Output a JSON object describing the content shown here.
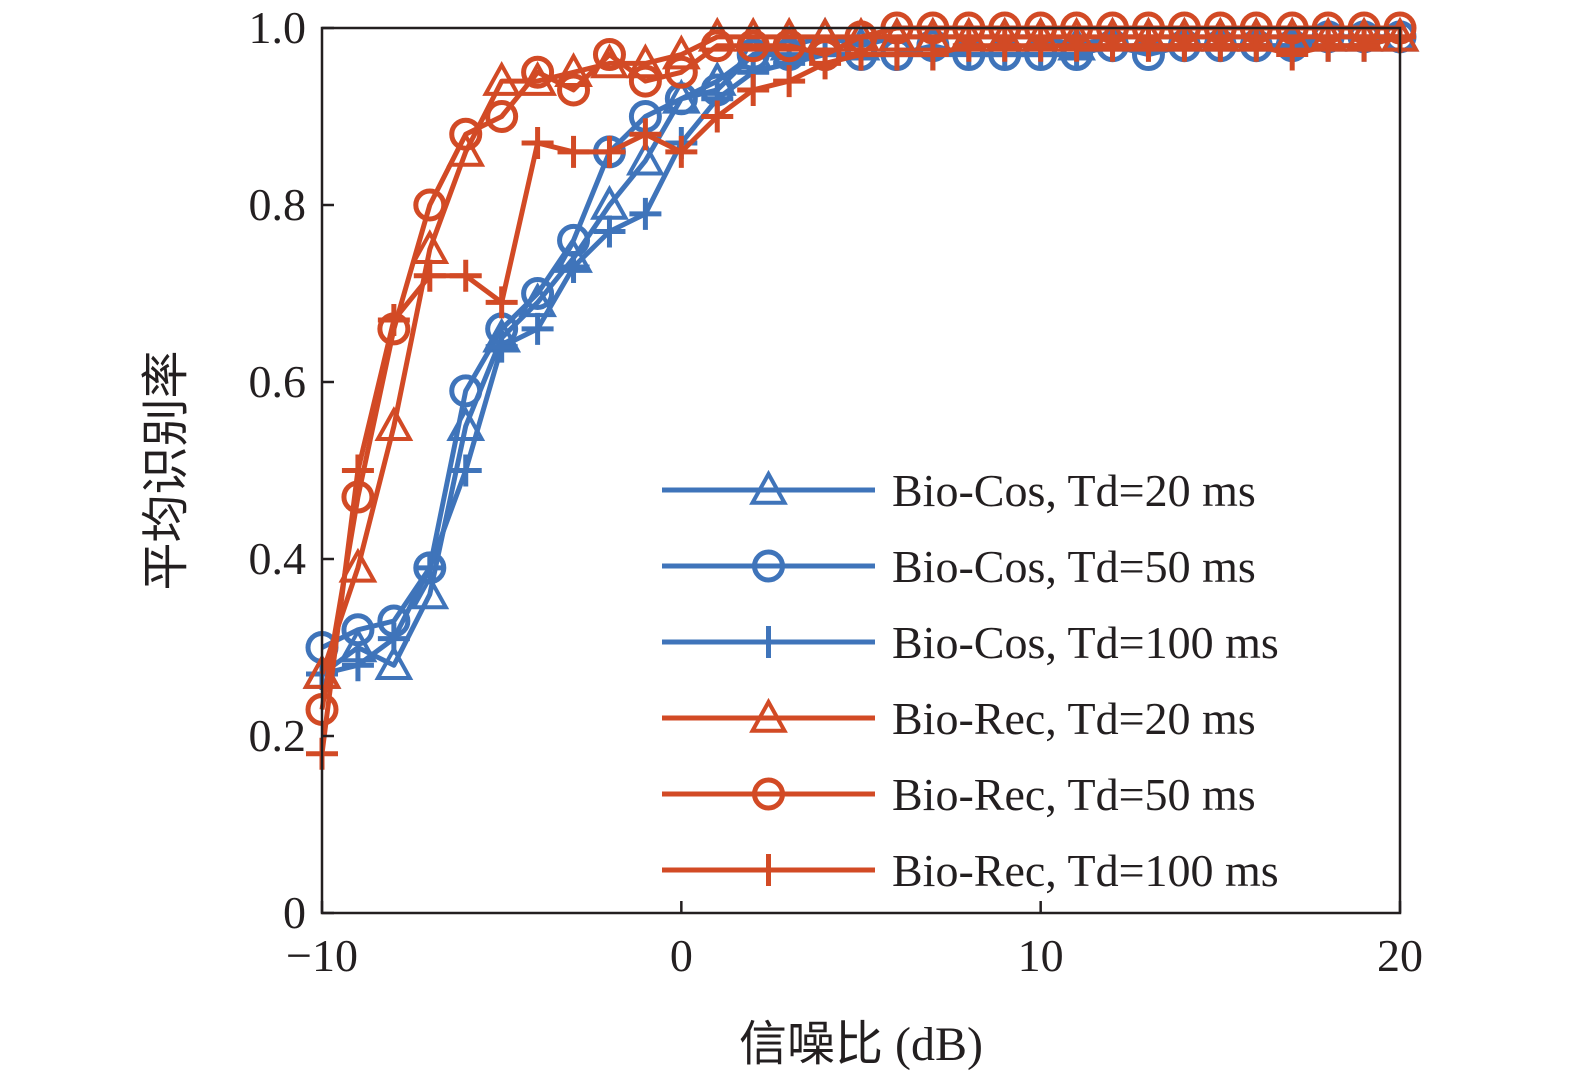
{
  "chart_data": {
    "type": "line",
    "xlabel": "信噪比 (dB)",
    "ylabel": "平均识别率",
    "xlim": [
      -10,
      20
    ],
    "ylim": [
      0,
      1.0
    ],
    "xticks": [
      -10,
      0,
      10,
      20
    ],
    "xtick_labels": [
      "−10",
      "0",
      "10",
      "20"
    ],
    "yticks": [
      0,
      0.2,
      0.4,
      0.6,
      0.8,
      1.0
    ],
    "ytick_labels": [
      "0",
      "0.2",
      "0.4",
      "0.6",
      "0.8",
      "1.0"
    ],
    "grid": false,
    "legend_position": "bottom-right",
    "x": [
      -10,
      -9,
      -8,
      -7,
      -6,
      -5,
      -4,
      -3,
      -2,
      -1,
      0,
      1,
      2,
      3,
      4,
      5,
      6,
      7,
      8,
      9,
      10,
      11,
      12,
      13,
      14,
      15,
      16,
      17,
      18,
      19,
      20
    ],
    "series": [
      {
        "name": "Bio-Cos, Td=20 ms",
        "color": "#3f74ba",
        "marker": "triangle",
        "values": [
          0.27,
          0.3,
          0.28,
          0.36,
          0.55,
          0.65,
          0.69,
          0.74,
          0.8,
          0.85,
          0.92,
          0.94,
          0.97,
          0.98,
          0.99,
          0.98,
          0.99,
          0.99,
          0.99,
          0.99,
          0.99,
          0.98,
          0.99,
          0.99,
          0.99,
          0.99,
          0.99,
          0.99,
          0.99,
          0.99,
          0.99
        ]
      },
      {
        "name": "Bio-Cos, Td=50 ms",
        "color": "#3f74ba",
        "marker": "circle",
        "values": [
          0.3,
          0.32,
          0.33,
          0.39,
          0.59,
          0.66,
          0.7,
          0.76,
          0.86,
          0.9,
          0.92,
          0.93,
          0.97,
          0.97,
          0.97,
          0.97,
          0.97,
          0.98,
          0.97,
          0.97,
          0.97,
          0.97,
          0.98,
          0.97,
          0.98,
          0.98,
          0.98,
          0.98,
          0.99,
          0.99,
          0.99
        ]
      },
      {
        "name": "Bio-Cos, Td=100 ms",
        "color": "#3f74ba",
        "marker": "plus",
        "values": [
          0.27,
          0.28,
          0.31,
          0.39,
          0.5,
          0.64,
          0.66,
          0.73,
          0.77,
          0.79,
          0.87,
          0.92,
          0.95,
          0.96,
          0.97,
          0.97,
          0.97,
          0.97,
          0.97,
          0.97,
          0.97,
          0.97,
          0.98,
          0.98,
          0.98,
          0.98,
          0.98,
          0.98,
          0.98,
          0.98,
          0.99
        ]
      },
      {
        "name": "Bio-Rec, Td=20 ms",
        "color": "#d24a25",
        "marker": "triangle",
        "values": [
          0.27,
          0.39,
          0.55,
          0.75,
          0.86,
          0.94,
          0.94,
          0.95,
          0.96,
          0.96,
          0.97,
          0.99,
          0.99,
          0.99,
          0.99,
          0.99,
          0.99,
          0.99,
          0.99,
          0.99,
          0.99,
          0.99,
          0.99,
          0.99,
          0.99,
          0.99,
          0.99,
          0.99,
          0.99,
          0.99,
          0.99
        ]
      },
      {
        "name": "Bio-Rec, Td=50 ms",
        "color": "#d24a25",
        "marker": "circle",
        "values": [
          0.23,
          0.47,
          0.66,
          0.8,
          0.88,
          0.9,
          0.95,
          0.93,
          0.97,
          0.94,
          0.95,
          0.98,
          0.98,
          0.98,
          0.97,
          0.99,
          1.0,
          1.0,
          1.0,
          1.0,
          1.0,
          1.0,
          1.0,
          1.0,
          1.0,
          1.0,
          1.0,
          1.0,
          1.0,
          1.0,
          1.0
        ]
      },
      {
        "name": "Bio-Rec, Td=100 ms",
        "color": "#d24a25",
        "marker": "plus",
        "values": [
          0.18,
          0.5,
          0.67,
          0.72,
          0.72,
          0.69,
          0.87,
          0.86,
          0.86,
          0.88,
          0.86,
          0.9,
          0.93,
          0.94,
          0.96,
          0.97,
          0.97,
          0.97,
          0.98,
          0.98,
          0.98,
          0.98,
          0.98,
          0.98,
          0.98,
          0.98,
          0.98,
          0.97,
          0.98,
          0.98,
          0.99
        ]
      }
    ]
  }
}
